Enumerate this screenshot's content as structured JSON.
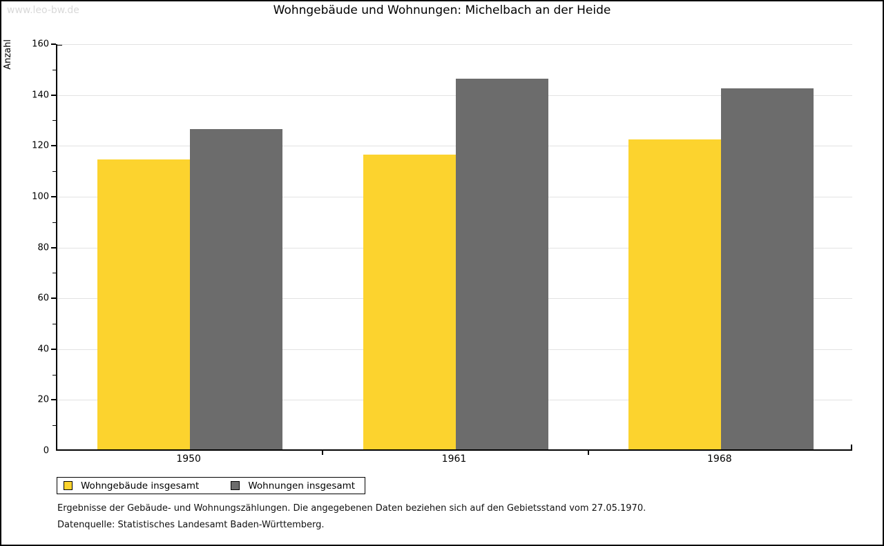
{
  "watermark": "www.leo-bw.de",
  "footnotes": [
    "Ergebnisse der Gebäude- und Wohnungszählungen. Die angegebenen Daten beziehen sich auf den Gebietsstand vom 27.05.1970.",
    "Datenquelle: Statistisches Landesamt Baden-Württemberg."
  ],
  "chart_data": {
    "type": "bar",
    "title": "Wohngebäude und Wohnungen: Michelbach an der Heide",
    "xlabel": "",
    "ylabel": "Anzahl",
    "categories": [
      "1950",
      "1961",
      "1968"
    ],
    "series": [
      {
        "name": "Wohngebäude insgesamt",
        "color": "#FCD32E",
        "values": [
          114,
          116,
          122
        ]
      },
      {
        "name": "Wohnungen insgesamt",
        "color": "#6C6C6C",
        "values": [
          126,
          146,
          142
        ]
      }
    ],
    "ylim": [
      0,
      160
    ],
    "ytick_step": 20,
    "yminor_step": 10,
    "grid": "horizontal-major",
    "gridline_color": "#e2e2e2",
    "legend_position": "bottom-left"
  }
}
